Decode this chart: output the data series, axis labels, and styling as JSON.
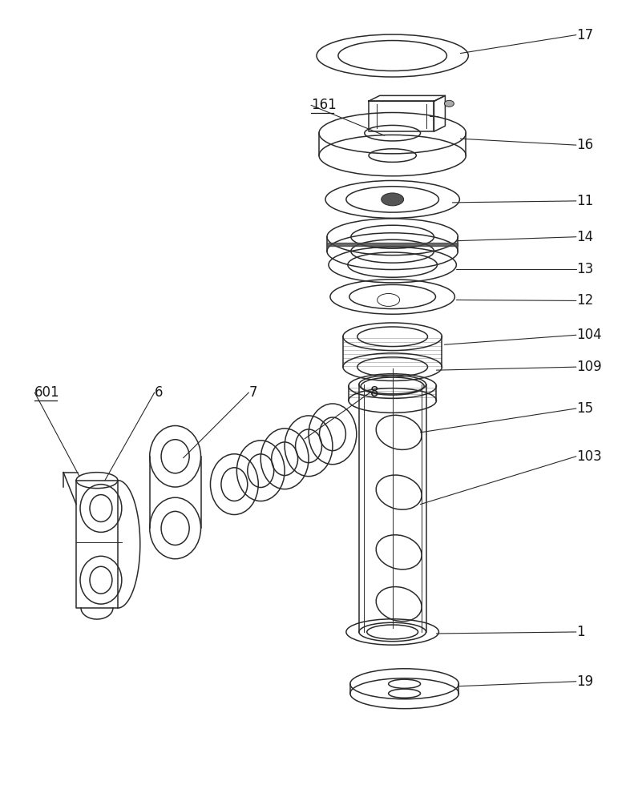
{
  "background_color": "#ffffff",
  "lc": "#2a2a2a",
  "lw": 1.1,
  "lw2": 0.7,
  "fig_width": 7.86,
  "fig_height": 10.0,
  "label_fs": 12,
  "underlined": [
    "161",
    "601"
  ]
}
